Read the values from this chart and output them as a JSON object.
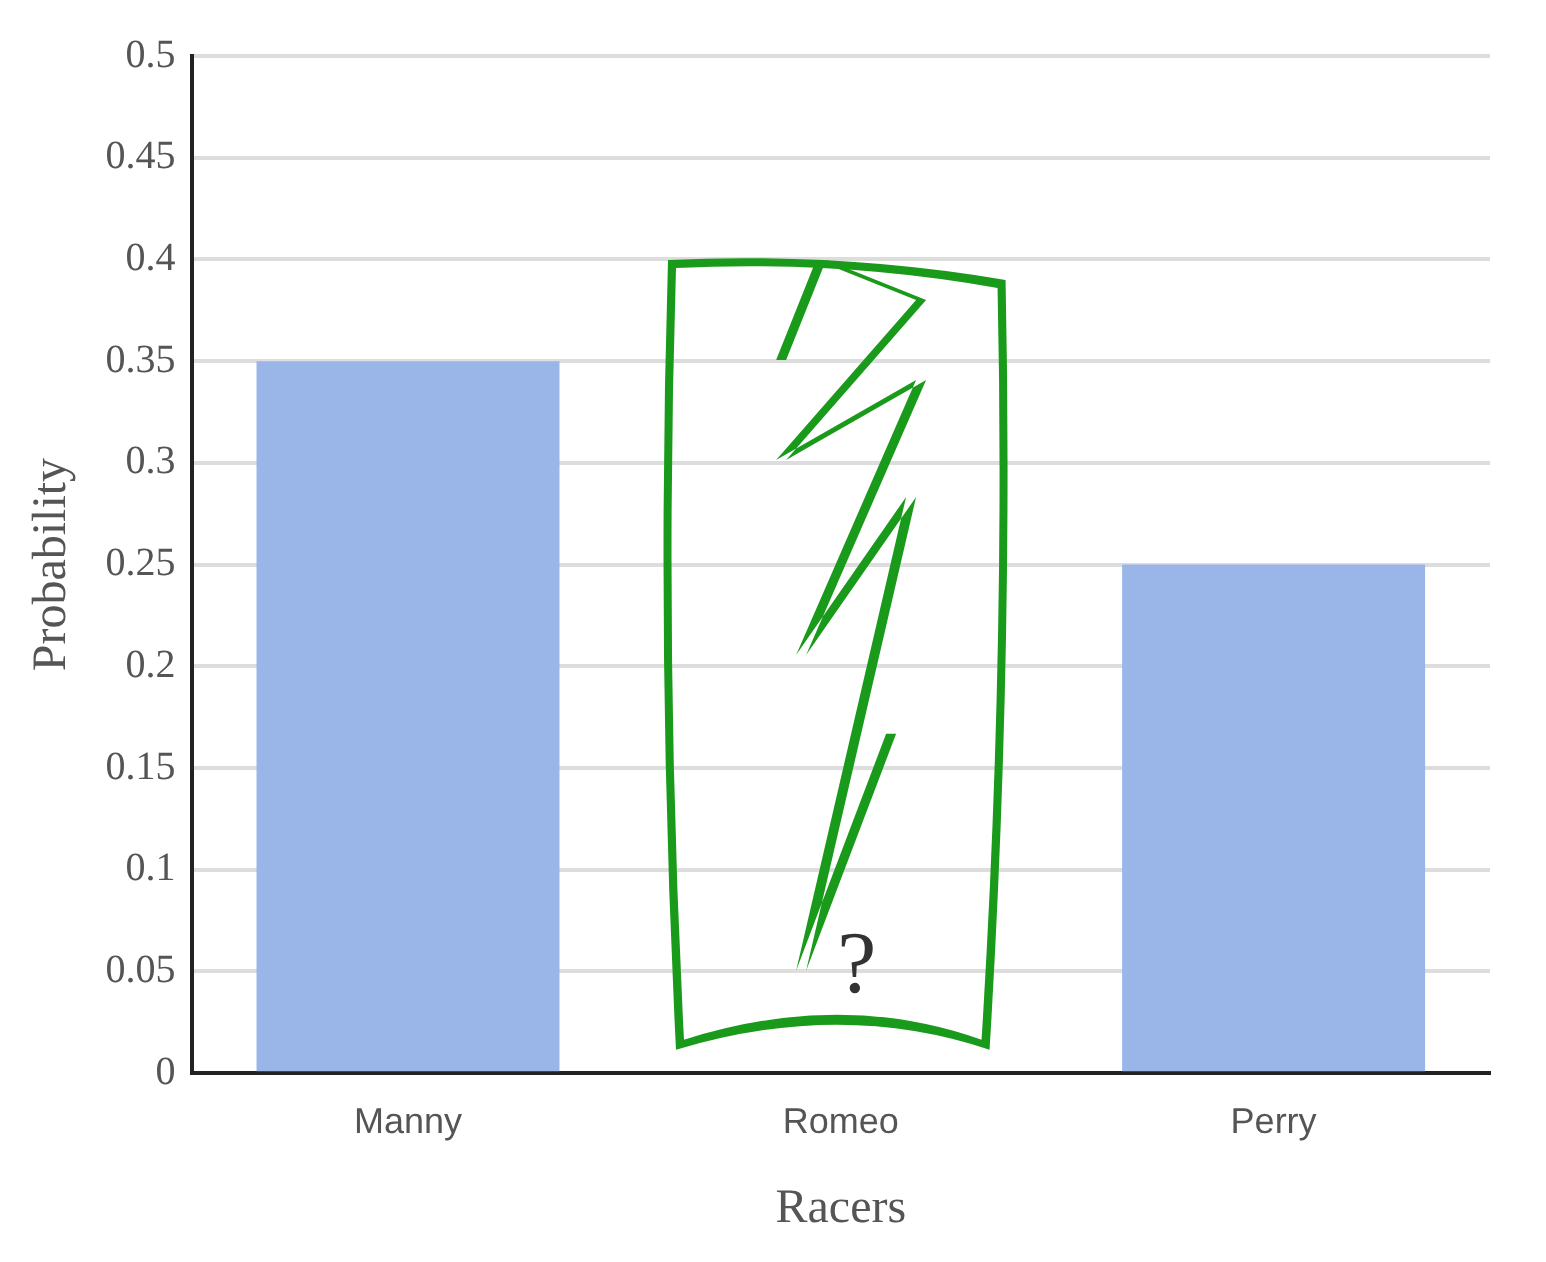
{
  "chart_data": {
    "type": "bar",
    "xlabel": "Racers",
    "ylabel": "Probability",
    "categories": [
      "Manny",
      "Romeo",
      "Perry"
    ],
    "values": [
      0.35,
      null,
      0.25
    ],
    "color": "#9ab5e8",
    "ylim": [
      0,
      0.5
    ],
    "yticks": [
      0,
      0.05,
      0.1,
      0.15,
      0.2,
      0.25,
      0.3,
      0.35,
      0.4,
      0.45,
      0.5
    ],
    "grid": "y",
    "legend": false,
    "annotations": [
      "?"
    ]
  }
}
